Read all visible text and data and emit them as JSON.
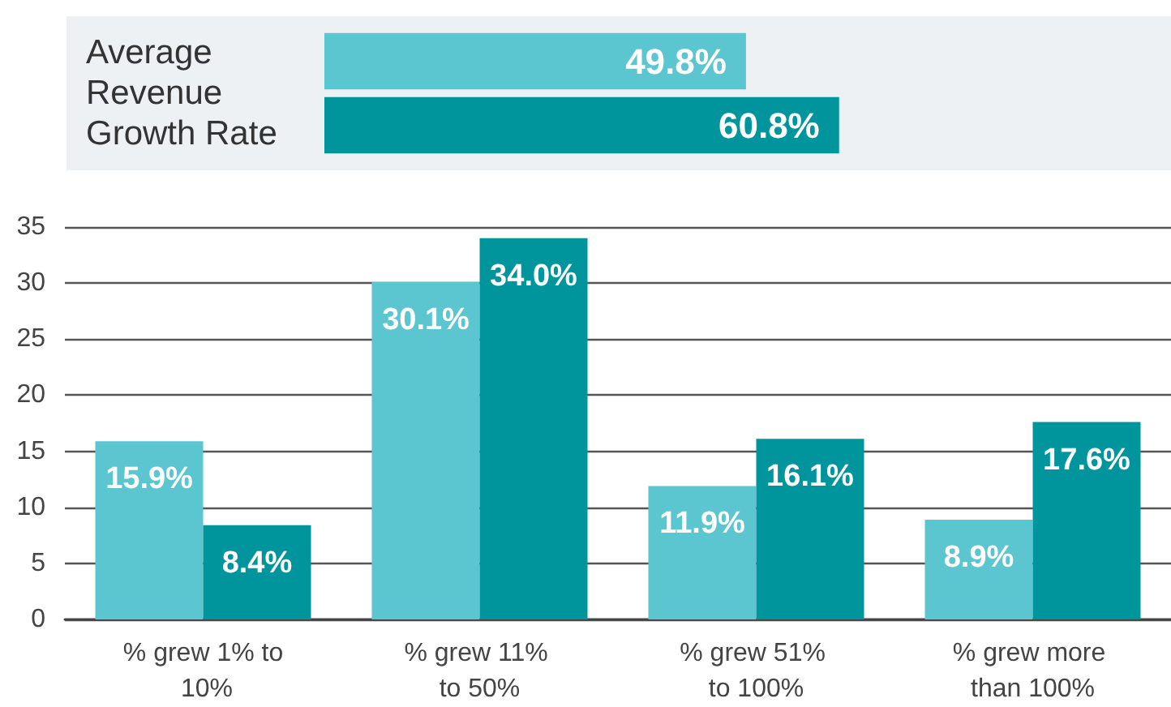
{
  "chart_data": [
    {
      "type": "bar",
      "orientation": "horizontal",
      "ylabel": "Average Revenue Growth Rate",
      "categories": [
        null,
        null
      ],
      "values": [
        49.8,
        60.8
      ],
      "colors": [
        "#5bc5d0",
        "#00959c"
      ],
      "value_labels": [
        "49.8%",
        "60.8%"
      ],
      "xlim": [
        0,
        100
      ],
      "tick_labels": false,
      "grid": false
    },
    {
      "type": "bar",
      "categories": [
        "% grew 1% to 10%",
        "% grew 11% to 50%",
        "% grew 51% to 100%",
        "% grew more than 100%"
      ],
      "series": [
        {
          "color": "#5bc5d0",
          "values": [
            15.9,
            30.1,
            11.9,
            8.9
          ],
          "value_labels": [
            "15.9%",
            "30.1%",
            "11.9%",
            "8.9%"
          ]
        },
        {
          "color": "#00959c",
          "values": [
            8.4,
            34.0,
            16.1,
            17.6
          ],
          "value_labels": [
            "8.4%",
            "34.0%",
            "16.1%",
            "17.6%"
          ]
        }
      ],
      "ylim": [
        0,
        35
      ],
      "yticks": [
        0,
        5,
        10,
        15,
        20,
        25,
        30,
        35
      ],
      "grid": "y"
    }
  ]
}
